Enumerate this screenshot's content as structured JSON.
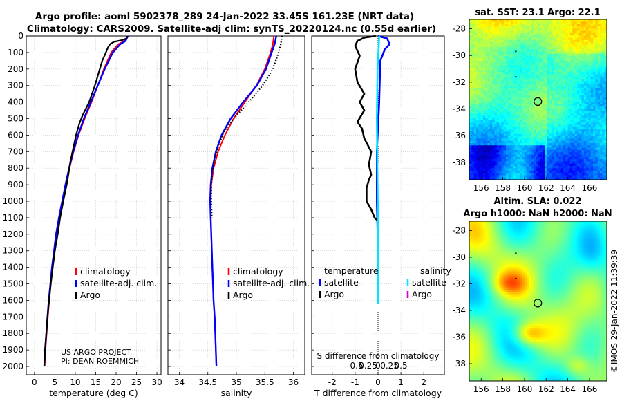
{
  "title_line1": "Argo profile: aoml 5902378_289 24-Jan-2022 33.45S 161.23E (NRT data)",
  "title_line2": "Climatology: CARS2009. Satellite-adj clim: synTS_20220124.nc (0.55d earlier)",
  "project_line1": "US ARGO PROJECT",
  "project_line2": "PI: DEAN ROEMMICH",
  "side_credit": "©IMOS 29-Jan-2022 11:39:39",
  "colors": {
    "climatology": "#ff0000",
    "satellite_adj": "#0000ff",
    "argo": "#000000",
    "sat_salinity": "#00e5ff",
    "argo_salinity": "#d400d4",
    "axis": "#000000",
    "grid": "#c8c8c8"
  },
  "map_sst": {
    "title": "sat. SST: 23.1 Argo: 22.1",
    "lat_ticks": [
      "-28",
      "-30",
      "-32",
      "-34",
      "-36",
      "-38"
    ],
    "lon_ticks": [
      "156",
      "158",
      "160",
      "162",
      "164",
      "166"
    ]
  },
  "map_sla": {
    "title_line1": "Altim. SLA: 0.022",
    "title_line2": "Argo h1000: NaN h2000: NaN",
    "lat_ticks": [
      "-28",
      "-30",
      "-32",
      "-34",
      "-36",
      "-38"
    ],
    "lon_ticks": [
      "156",
      "158",
      "160",
      "162",
      "164",
      "166"
    ]
  },
  "chart_data": [
    {
      "type": "line",
      "id": "temperature",
      "xlabel": "temperature (deg C)",
      "ylabel": "",
      "xlim": [
        -2,
        31
      ],
      "ylim": [
        0,
        2050
      ],
      "x_ticks": [
        0,
        5,
        10,
        15,
        20,
        25,
        30
      ],
      "x_tick_labels": [
        "0",
        "5",
        "10",
        "15",
        "20",
        "25",
        "30"
      ],
      "y_ticks": [
        0,
        100,
        200,
        300,
        400,
        500,
        600,
        700,
        800,
        900,
        1000,
        1100,
        1200,
        1300,
        1400,
        1500,
        1600,
        1700,
        1800,
        1900,
        2000
      ],
      "y_tick_labels": [
        "0",
        "100",
        "200",
        "300",
        "400",
        "500",
        "600",
        "700",
        "800",
        "900",
        "1000",
        "1100",
        "1200",
        "1300",
        "1400",
        "1500",
        "1600",
        "1700",
        "1800",
        "1900",
        "2000"
      ],
      "legend": [
        "climatology",
        "satellite-adj. clim.",
        "Argo"
      ],
      "series": [
        {
          "name": "climatology",
          "style": "line",
          "points": [
            [
              22.8,
              0
            ],
            [
              22.6,
              10
            ],
            [
              22.0,
              30
            ],
            [
              20.5,
              50
            ],
            [
              18.8,
              100
            ],
            [
              17.0,
              200
            ],
            [
              15.5,
              300
            ],
            [
              14.0,
              400
            ],
            [
              12.3,
              500
            ],
            [
              10.8,
              600
            ],
            [
              9.6,
              700
            ],
            [
              8.6,
              800
            ],
            [
              7.7,
              900
            ],
            [
              6.9,
              1000
            ],
            [
              6.1,
              1100
            ],
            [
              5.4,
              1200
            ],
            [
              4.9,
              1300
            ],
            [
              4.4,
              1400
            ],
            [
              4.0,
              1500
            ],
            [
              3.6,
              1600
            ],
            [
              3.3,
              1700
            ],
            [
              3.0,
              1800
            ],
            [
              2.7,
              1900
            ],
            [
              2.5,
              2000
            ]
          ]
        },
        {
          "name": "satellite-adj. clim.",
          "style": "line",
          "points": [
            [
              22.9,
              0
            ],
            [
              22.7,
              10
            ],
            [
              22.3,
              30
            ],
            [
              21.0,
              50
            ],
            [
              19.2,
              100
            ],
            [
              17.2,
              200
            ],
            [
              15.5,
              300
            ],
            [
              13.8,
              400
            ],
            [
              12.1,
              500
            ],
            [
              10.7,
              600
            ],
            [
              9.5,
              700
            ],
            [
              8.5,
              800
            ],
            [
              7.6,
              900
            ],
            [
              6.8,
              1000
            ],
            [
              6.0,
              1100
            ],
            [
              5.3,
              1200
            ],
            [
              4.8,
              1300
            ],
            [
              4.3,
              1400
            ],
            [
              3.9,
              1500
            ],
            [
              3.5,
              1600
            ],
            [
              3.2,
              1700
            ],
            [
              2.9,
              1800
            ],
            [
              2.6,
              1900
            ],
            [
              2.4,
              2000
            ]
          ]
        },
        {
          "name": "Argo",
          "style": "line",
          "points": [
            [
              22.7,
              0
            ],
            [
              22.5,
              15
            ],
            [
              21.5,
              25
            ],
            [
              19.5,
              35
            ],
            [
              18.5,
              50
            ],
            [
              18.0,
              70
            ],
            [
              17.5,
              100
            ],
            [
              16.6,
              150
            ],
            [
              16.0,
              200
            ],
            [
              14.8,
              300
            ],
            [
              13.4,
              400
            ],
            [
              11.8,
              480
            ],
            [
              11.0,
              530
            ],
            [
              10.2,
              600
            ],
            [
              9.5,
              680
            ],
            [
              8.8,
              760
            ],
            [
              8.3,
              840
            ],
            [
              7.9,
              900
            ],
            [
              7.4,
              960
            ],
            [
              6.9,
              1020
            ],
            [
              6.3,
              1100
            ],
            [
              5.7,
              1200
            ],
            [
              5.0,
              1300
            ],
            [
              4.5,
              1400
            ],
            [
              4.0,
              1500
            ],
            [
              3.6,
              1600
            ],
            [
              3.2,
              1700
            ],
            [
              2.9,
              1800
            ],
            [
              2.6,
              1900
            ],
            [
              2.4,
              2000
            ]
          ]
        }
      ]
    },
    {
      "type": "line",
      "id": "salinity",
      "xlabel": "salinity",
      "ylabel": "",
      "xlim": [
        33.8,
        36.2
      ],
      "ylim": [
        0,
        2050
      ],
      "x_ticks": [
        34,
        34.5,
        35,
        35.5,
        36
      ],
      "x_tick_labels": [
        "34",
        "34.5",
        "35",
        "35.5",
        "36"
      ],
      "legend": [
        "climatology",
        "satellite-adj. clim.",
        "Argo"
      ],
      "series": [
        {
          "name": "climatology",
          "style": "line",
          "points": [
            [
              35.66,
              0
            ],
            [
              35.64,
              50
            ],
            [
              35.6,
              100
            ],
            [
              35.5,
              200
            ],
            [
              35.35,
              300
            ],
            [
              35.15,
              400
            ],
            [
              34.95,
              500
            ],
            [
              34.8,
              600
            ],
            [
              34.68,
              700
            ],
            [
              34.6,
              800
            ],
            [
              34.56,
              900
            ],
            [
              34.55,
              1000
            ],
            [
              34.55,
              1100
            ],
            [
              34.56,
              1200
            ],
            [
              34.57,
              1300
            ],
            [
              34.58,
              1400
            ],
            [
              34.59,
              1500
            ],
            [
              34.6,
              1600
            ],
            [
              34.62,
              1700
            ],
            [
              34.63,
              1800
            ],
            [
              34.64,
              1900
            ],
            [
              34.65,
              2000
            ]
          ]
        },
        {
          "name": "satellite-adj. clim.",
          "style": "line",
          "points": [
            [
              35.7,
              0
            ],
            [
              35.67,
              50
            ],
            [
              35.62,
              100
            ],
            [
              35.52,
              200
            ],
            [
              35.36,
              300
            ],
            [
              35.12,
              400
            ],
            [
              34.9,
              500
            ],
            [
              34.74,
              600
            ],
            [
              34.64,
              700
            ],
            [
              34.58,
              800
            ],
            [
              34.55,
              900
            ],
            [
              34.54,
              1000
            ],
            [
              34.55,
              1100
            ],
            [
              34.56,
              1200
            ],
            [
              34.57,
              1300
            ],
            [
              34.58,
              1400
            ],
            [
              34.59,
              1500
            ],
            [
              34.6,
              1600
            ],
            [
              34.62,
              1700
            ],
            [
              34.63,
              1800
            ],
            [
              34.64,
              1900
            ],
            [
              34.65,
              2000
            ]
          ]
        },
        {
          "name": "Argo",
          "style": "dotted",
          "points": [
            [
              35.8,
              0
            ],
            [
              35.78,
              50
            ],
            [
              35.74,
              100
            ],
            [
              35.64,
              200
            ],
            [
              35.46,
              300
            ],
            [
              35.22,
              400
            ],
            [
              34.95,
              500
            ],
            [
              34.78,
              580
            ],
            [
              34.7,
              650
            ],
            [
              34.62,
              740
            ],
            [
              34.58,
              820
            ],
            [
              34.56,
              900
            ],
            [
              34.56,
              1000
            ],
            [
              34.57,
              1100
            ]
          ]
        }
      ]
    },
    {
      "type": "line",
      "id": "difference",
      "xlabel": "T difference from climatology",
      "xlabel_top": "S difference from climatology",
      "xlim": [
        -2.9,
        2.9
      ],
      "ylim": [
        0,
        2050
      ],
      "x_ticks": [
        -2,
        -1,
        0,
        1,
        2
      ],
      "x_tick_labels": [
        "-2",
        "-1",
        "0",
        "1",
        "2"
      ],
      "s_ticks": [
        -1,
        -0.5,
        0,
        0.5,
        1
      ],
      "s_tick_labels": [
        "-0.5",
        "-0.25",
        "0",
        "0.25",
        "0.5"
      ],
      "legend_left_title": "temperature",
      "legend_right_title": "salinity",
      "legend_left": [
        "satellite",
        "Argo"
      ],
      "legend_right": [
        "satellite",
        "Argo"
      ],
      "series": [
        {
          "name": "temperature satellite",
          "style": "line",
          "points": [
            [
              0,
              0
            ],
            [
              0.4,
              15
            ],
            [
              0.5,
              50
            ],
            [
              0.3,
              80
            ],
            [
              0.1,
              150
            ],
            [
              0.05,
              400
            ],
            [
              -0.05,
              700
            ],
            [
              -0.05,
              1000
            ],
            [
              0,
              1300
            ],
            [
              0,
              1600
            ],
            [
              0,
              1620
            ]
          ]
        },
        {
          "name": "temperature Argo",
          "style": "line",
          "points": [
            [
              -0.1,
              0
            ],
            [
              -0.6,
              10
            ],
            [
              -0.9,
              30
            ],
            [
              -1.0,
              60
            ],
            [
              -0.8,
              120
            ],
            [
              -1.0,
              200
            ],
            [
              -0.9,
              280
            ],
            [
              -0.6,
              350
            ],
            [
              -0.8,
              400
            ],
            [
              -0.6,
              450
            ],
            [
              -0.9,
              520
            ],
            [
              -0.7,
              560
            ],
            [
              -0.6,
              620
            ],
            [
              -0.3,
              700
            ],
            [
              -0.4,
              780
            ],
            [
              -0.3,
              840
            ],
            [
              -0.4,
              870
            ],
            [
              -0.5,
              920
            ],
            [
              -0.5,
              1000
            ],
            [
              -0.3,
              1050
            ],
            [
              -0.15,
              1100
            ],
            [
              0,
              1120
            ]
          ]
        },
        {
          "name": "salinity satellite",
          "style": "line",
          "points": [
            [
              0.05,
              0
            ],
            [
              -0.02,
              200
            ],
            [
              -0.05,
              500
            ],
            [
              -0.03,
              800
            ],
            [
              0,
              1100
            ],
            [
              0,
              1600
            ],
            [
              0,
              1620
            ]
          ]
        },
        {
          "name": "salinity Argo",
          "style": "line",
          "points": []
        }
      ]
    }
  ]
}
